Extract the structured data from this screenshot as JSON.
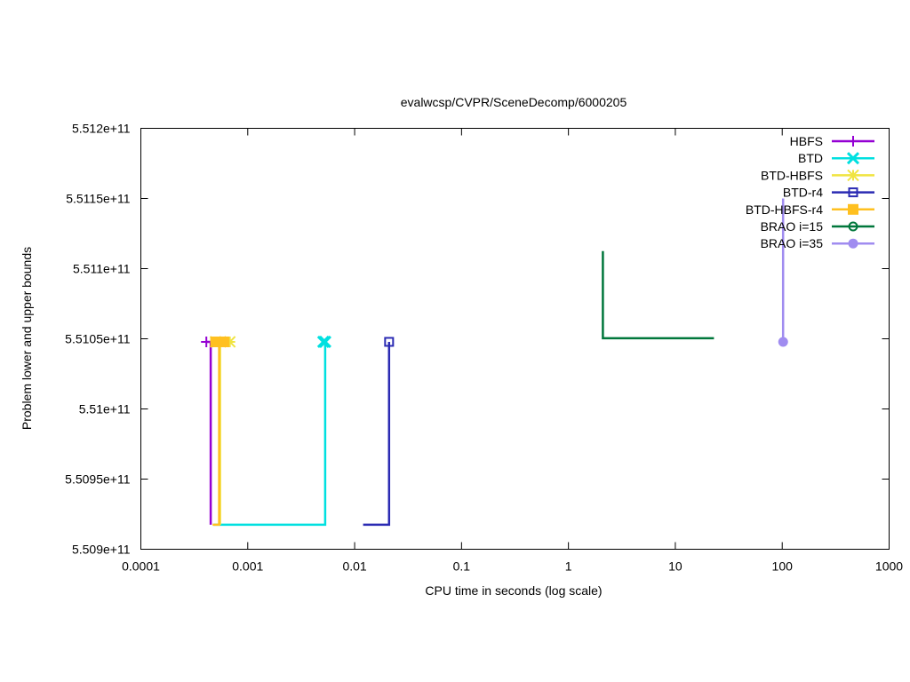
{
  "chart_data": {
    "type": "line",
    "title": "evalwcsp/CVPR/SceneDecomp/6000205",
    "xlabel": "CPU time in seconds (log scale)",
    "ylabel": "Problem lower and upper bounds",
    "x_scale": "log",
    "xlim": [
      0.0001,
      1000
    ],
    "ylim": [
      550900000000,
      551200000000
    ],
    "grid": false,
    "legend_position": "top-right",
    "x_ticks": [
      {
        "value": 0.0001,
        "label": "0.0001"
      },
      {
        "value": 0.001,
        "label": "0.001"
      },
      {
        "value": 0.01,
        "label": "0.01"
      },
      {
        "value": 0.1,
        "label": "0.1"
      },
      {
        "value": 1,
        "label": "1"
      },
      {
        "value": 10,
        "label": "10"
      },
      {
        "value": 100,
        "label": "100"
      },
      {
        "value": 1000,
        "label": "1000"
      }
    ],
    "y_ticks": [
      {
        "value": 550900000000,
        "label": "5.509e+11"
      },
      {
        "value": 550950000000,
        "label": "5.5095e+11"
      },
      {
        "value": 551000000000,
        "label": "5.51e+11"
      },
      {
        "value": 551050000000,
        "label": "5.5105e+11"
      },
      {
        "value": 551100000000,
        "label": "5.511e+11"
      },
      {
        "value": 551150000000,
        "label": "5.5115e+11"
      },
      {
        "value": 551200000000,
        "label": "5.512e+11"
      }
    ],
    "series": [
      {
        "name": "HBFS",
        "color": "#9400d3",
        "marker": "plus",
        "lower": [
          [
            0.00045,
            550917500000
          ],
          [
            0.00045,
            551047800000
          ]
        ],
        "upper": [
          [
            0.00041,
            551047800000
          ],
          [
            0.00047,
            551047800000
          ]
        ]
      },
      {
        "name": "BTD",
        "color": "#00e0e0",
        "marker": "cross",
        "lower": [
          [
            0.00048,
            550917500000
          ],
          [
            0.0053,
            550917500000
          ],
          [
            0.0053,
            551047800000
          ]
        ],
        "upper": [
          [
            0.0051,
            551047800000
          ],
          [
            0.0053,
            551047800000
          ]
        ]
      },
      {
        "name": "BTD-HBFS",
        "color": "#f0e442",
        "marker": "star",
        "lower": [
          [
            0.00055,
            550917500000
          ],
          [
            0.00055,
            551047800000
          ]
        ],
        "upper": [
          [
            0.0005,
            551047800000
          ],
          [
            0.00068,
            551047800000
          ]
        ]
      },
      {
        "name": "BTD-r4",
        "color": "#2b2bb3",
        "marker": "open-square",
        "lower": [
          [
            0.012,
            550917500000
          ],
          [
            0.021,
            550917500000
          ],
          [
            0.021,
            551047800000
          ]
        ],
        "upper": [
          [
            0.021,
            551047800000
          ]
        ]
      },
      {
        "name": "BTD-HBFS-r4",
        "color": "#ffc020",
        "marker": "filled-square",
        "lower": [
          [
            0.00047,
            550917500000
          ],
          [
            0.00054,
            550917500000
          ],
          [
            0.00054,
            551047800000
          ]
        ],
        "upper": [
          [
            0.0005,
            551047800000
          ],
          [
            0.0006,
            551047800000
          ]
        ]
      },
      {
        "name": "BRAO i=15",
        "color": "#00773b",
        "marker": "open-circle",
        "lower": [],
        "upper": [
          [
            2.1,
            551112500000
          ],
          [
            2.1,
            551050400000
          ],
          [
            23,
            551050400000
          ]
        ]
      },
      {
        "name": "BRAO i=35",
        "color": "#a08cf0",
        "marker": "filled-circle",
        "lower": [
          [
            102,
            551047800000
          ],
          [
            102,
            551150000000
          ]
        ],
        "upper": [
          [
            102,
            551047800000
          ]
        ]
      }
    ]
  }
}
